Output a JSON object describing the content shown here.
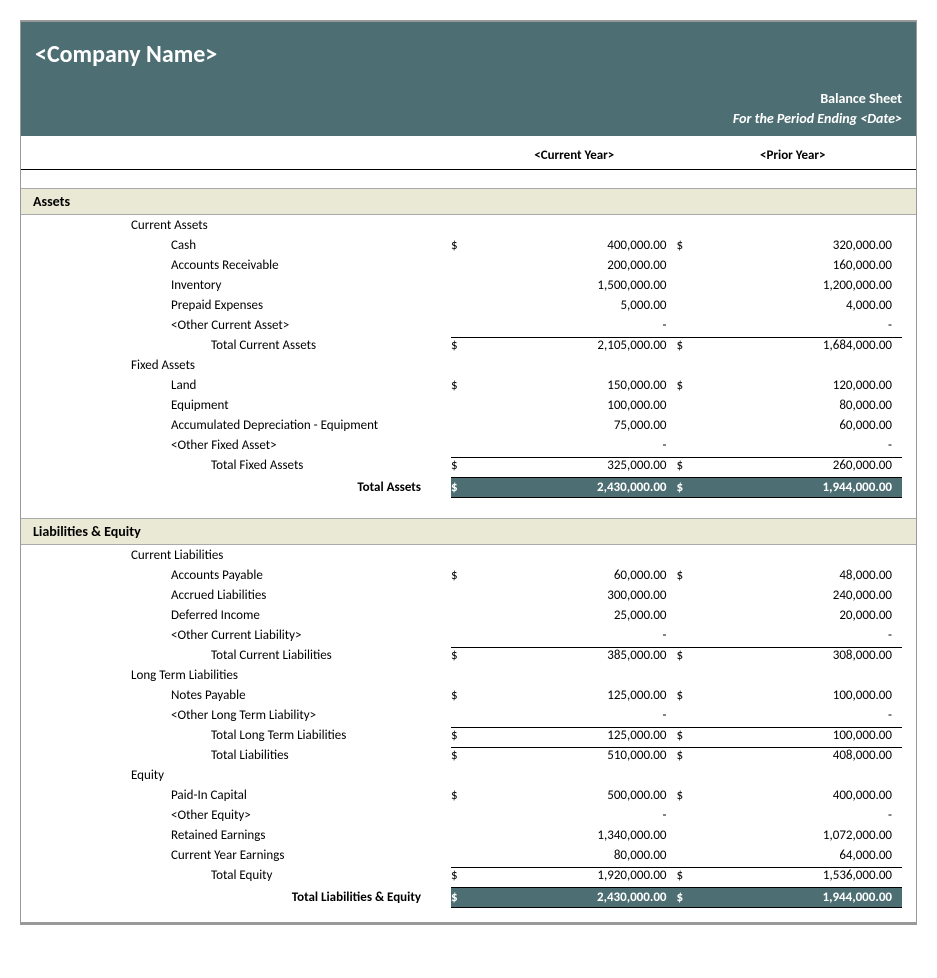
{
  "colors": {
    "header_bg": "#4d6e72",
    "header_text": "#ffffff",
    "section_bg": "#e9e9d5",
    "border": "#999999",
    "text": "#000000"
  },
  "typography": {
    "font_family": "Calibri",
    "body_fontsize": 13,
    "company_fontsize": 24,
    "section_fontsize": 14
  },
  "header": {
    "company": "<Company Name>",
    "title": "Balance Sheet",
    "period_prefix": "For the Period Ending ",
    "period_date": "<Date>"
  },
  "columns": {
    "current": "<Current Year>",
    "prior": "<Prior Year>"
  },
  "currency_symbol": "$",
  "dash": "-",
  "assets": {
    "title": "Assets",
    "current": {
      "title": "Current Assets",
      "items": [
        {
          "label": "Cash",
          "cy": "400,000.00",
          "py": "320,000.00",
          "sym": true
        },
        {
          "label": "Accounts Receivable",
          "cy": "200,000.00",
          "py": "160,000.00"
        },
        {
          "label": "Inventory",
          "cy": "1,500,000.00",
          "py": "1,200,000.00"
        },
        {
          "label": "Prepaid Expenses",
          "cy": "5,000.00",
          "py": "4,000.00"
        },
        {
          "label": "<Other Current Asset>",
          "cy": "-",
          "py": "-"
        }
      ],
      "total": {
        "label": "Total Current Assets",
        "cy": "2,105,000.00",
        "py": "1,684,000.00"
      }
    },
    "fixed": {
      "title": "Fixed Assets",
      "items": [
        {
          "label": "Land",
          "cy": "150,000.00",
          "py": "120,000.00",
          "sym": true
        },
        {
          "label": "Equipment",
          "cy": "100,000.00",
          "py": "80,000.00"
        },
        {
          "label": "Accumulated Depreciation - Equipment",
          "cy": "75,000.00",
          "py": "60,000.00"
        },
        {
          "label": "<Other Fixed Asset>",
          "cy": "-",
          "py": "-"
        }
      ],
      "total": {
        "label": "Total Fixed Assets",
        "cy": "325,000.00",
        "py": "260,000.00"
      }
    },
    "grand": {
      "label": "Total Assets",
      "cy": "2,430,000.00",
      "py": "1,944,000.00"
    }
  },
  "liabeq": {
    "title": "Liabilities & Equity",
    "current": {
      "title": "Current Liabilities",
      "items": [
        {
          "label": "Accounts Payable",
          "cy": "60,000.00",
          "py": "48,000.00",
          "sym": true
        },
        {
          "label": "Accrued Liabilities",
          "cy": "300,000.00",
          "py": "240,000.00"
        },
        {
          "label": "Deferred Income",
          "cy": "25,000.00",
          "py": "20,000.00"
        },
        {
          "label": "<Other Current Liability>",
          "cy": "-",
          "py": "-"
        }
      ],
      "total": {
        "label": "Total Current Liabilities",
        "cy": "385,000.00",
        "py": "308,000.00"
      }
    },
    "longterm": {
      "title": "Long Term Liabilities",
      "items": [
        {
          "label": "Notes Payable",
          "cy": "125,000.00",
          "py": "100,000.00",
          "sym": true
        },
        {
          "label": "<Other Long Term Liability>",
          "cy": "-",
          "py": "-"
        }
      ],
      "total": {
        "label": "Total Long Term Liabilities",
        "cy": "125,000.00",
        "py": "100,000.00"
      },
      "liab_total": {
        "label": "Total Liabilities",
        "cy": "510,000.00",
        "py": "408,000.00"
      }
    },
    "equity": {
      "title": "Equity",
      "items": [
        {
          "label": "Paid-In Capital",
          "cy": "500,000.00",
          "py": "400,000.00",
          "sym": true
        },
        {
          "label": "<Other Equity>",
          "cy": "-",
          "py": "-"
        },
        {
          "label": "Retained Earnings",
          "cy": "1,340,000.00",
          "py": "1,072,000.00"
        },
        {
          "label": "Current Year Earnings",
          "cy": "80,000.00",
          "py": "64,000.00"
        }
      ],
      "total": {
        "label": "Total Equity",
        "cy": "1,920,000.00",
        "py": "1,536,000.00"
      }
    },
    "grand": {
      "label": "Total Liabilities & Equity",
      "cy": "2,430,000.00",
      "py": "1,944,000.00"
    }
  }
}
